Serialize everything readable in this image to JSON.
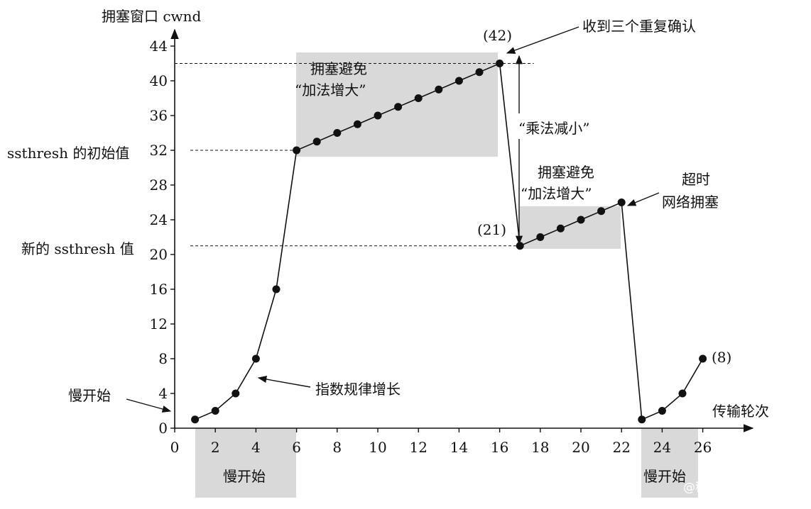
{
  "chart_data": {
    "type": "line",
    "ylabel": "拥塞窗口 cwnd",
    "xlabel": "传输轮次",
    "xlim": [
      0,
      27
    ],
    "ylim": [
      0,
      45
    ],
    "xticks": [
      0,
      2,
      4,
      6,
      8,
      10,
      12,
      14,
      16,
      18,
      20,
      22,
      24,
      26
    ],
    "yticks": [
      0,
      4,
      8,
      12,
      16,
      20,
      24,
      28,
      32,
      36,
      40,
      44
    ],
    "series": [
      {
        "x": [
          1,
          2,
          3,
          4,
          5,
          6,
          7,
          8,
          9,
          10,
          11,
          12,
          13,
          14,
          15,
          16,
          17,
          18,
          19,
          20,
          21,
          22,
          23,
          24,
          25,
          26
        ],
        "values": [
          1,
          2,
          4,
          8,
          16,
          32,
          33,
          34,
          35,
          36,
          37,
          38,
          39,
          40,
          41,
          42,
          21,
          22,
          23,
          24,
          25,
          26,
          1,
          2,
          4,
          8
        ]
      }
    ],
    "reference_lines": [
      {
        "label": "ssthresh 的初始值",
        "y": 32
      },
      {
        "label": "新的 ssthresh 值",
        "y": 21
      }
    ],
    "point_labels": [
      "(42)",
      "(21)",
      "(8)"
    ],
    "annotations": {
      "triple_ack": "收到三个重复确认",
      "multiplicative_decrease": "“乘法减小”",
      "timeout_line1": "超时",
      "timeout_line2": "网络拥塞",
      "exponential_growth": "指数规律增长",
      "slow_start_left": "慢开始",
      "ca1_line1": "拥塞避免",
      "ca1_line2": "“加法增大”",
      "ca2_line1": "拥塞避免",
      "ca2_line2": "“加法增大”",
      "slow_start_box1": "慢开始",
      "slow_start_box2": "慢开始"
    },
    "shaded_regions": [
      {
        "phase": "slow-start",
        "x": [
          1,
          6
        ],
        "below_axis": true
      },
      {
        "phase": "congestion-avoidance",
        "x": [
          6,
          16
        ],
        "y": [
          32,
          42
        ]
      },
      {
        "phase": "congestion-avoidance",
        "x": [
          17,
          22
        ],
        "y": [
          21,
          26
        ]
      },
      {
        "phase": "slow-start",
        "x": [
          23,
          26
        ],
        "below_axis": true
      }
    ],
    "grid": false
  },
  "watermark": "@稀土掘金技术社区"
}
